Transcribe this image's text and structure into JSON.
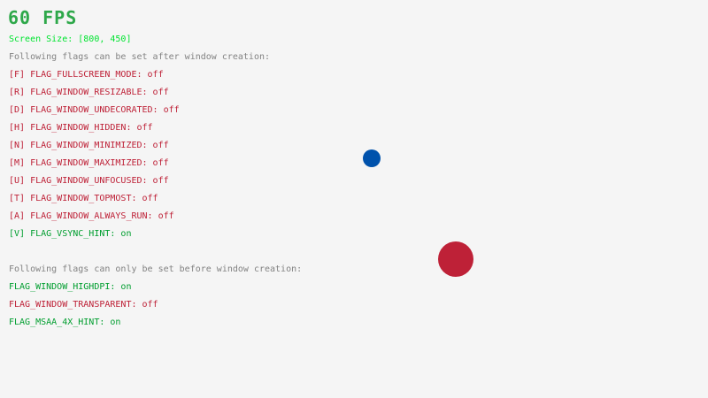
{
  "fps": "60 FPS",
  "screen_size": "Screen Size: [800, 450]",
  "after_heading": "Following flags can be set after window creation:",
  "after_flags": [
    {
      "label": "[F] FLAG_FULLSCREEN_MODE: off",
      "state": "off"
    },
    {
      "label": "[R] FLAG_WINDOW_RESIZABLE: off",
      "state": "off"
    },
    {
      "label": "[D] FLAG_WINDOW_UNDECORATED: off",
      "state": "off"
    },
    {
      "label": "[H] FLAG_WINDOW_HIDDEN: off",
      "state": "off"
    },
    {
      "label": "[N] FLAG_WINDOW_MINIMIZED: off",
      "state": "off"
    },
    {
      "label": "[M] FLAG_WINDOW_MAXIMIZED: off",
      "state": "off"
    },
    {
      "label": "[U] FLAG_WINDOW_UNFOCUSED: off",
      "state": "off"
    },
    {
      "label": "[T] FLAG_WINDOW_TOPMOST: off",
      "state": "off"
    },
    {
      "label": "[A] FLAG_WINDOW_ALWAYS_RUN: off",
      "state": "off"
    },
    {
      "label": "[V] FLAG_VSYNC_HINT: on",
      "state": "on"
    }
  ],
  "before_heading": "Following flags can only be set before window creation:",
  "before_flags": [
    {
      "label": "FLAG_WINDOW_HIGHDPI: on",
      "state": "on"
    },
    {
      "label": "FLAG_WINDOW_TRANSPARENT: off",
      "state": "off"
    },
    {
      "label": "FLAG_MSAA_4X_HINT: on",
      "state": "on"
    }
  ],
  "colors": {
    "background": "#f5f5f5",
    "on": "#009e2f",
    "off": "#be2137",
    "small_ball": "#0052ac",
    "large_ball": "#be2137"
  }
}
